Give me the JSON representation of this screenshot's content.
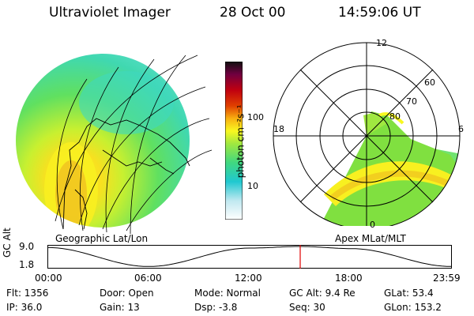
{
  "header": {
    "title": "Ultraviolet Imager",
    "date": "28 Oct 00",
    "time": "14:59:06 UT"
  },
  "left_panel": {
    "caption": "Geographic Lat/Lon"
  },
  "right_panel": {
    "caption": "Apex MLat/MLT",
    "mlt_labels": [
      "12",
      "18",
      "6",
      "0"
    ],
    "lat_labels": [
      "60",
      "70",
      "80"
    ]
  },
  "colorbar": {
    "unit_label": "photon cm⁻²s⁻¹",
    "tick_labels": [
      "100",
      "10"
    ],
    "colors": [
      "#ffffff",
      "#e8f0f8",
      "#c0e8f0",
      "#70d8e0",
      "#20c8d0",
      "#30d8a0",
      "#60e060",
      "#a0e840",
      "#d0f020",
      "#f8f820",
      "#f8d820",
      "#f8b010",
      "#f08000",
      "#e04000",
      "#d01010",
      "#b00020",
      "#900030",
      "#6a0040",
      "#3a0030",
      "#101010"
    ]
  },
  "altitude_plot": {
    "ylabel": "GC Alt",
    "yticks": [
      "9.0",
      "1.8"
    ],
    "xticks": [
      "00:00",
      "06:00",
      "12:00",
      "18:00",
      "23:59"
    ],
    "series_altitude_re": [
      [
        0,
        9.0
      ],
      [
        6,
        1.8
      ],
      [
        12,
        8.8
      ],
      [
        15,
        9.4
      ],
      [
        18,
        8.6
      ],
      [
        24,
        1.8
      ]
    ],
    "current_time_hr": 15.0,
    "current_marker_color": "#e00000"
  },
  "status": {
    "row1": {
      "flt": "Flt: 1356",
      "door": "Door: Open",
      "mode": "Mode: Normal",
      "gcalt": "GC Alt: 9.4 Re",
      "glat": "GLat:  53.4"
    },
    "row2": {
      "ip": "IP: 36.0",
      "gain": "Gain: 13",
      "dsp": "Dsp:   -3.8",
      "seq": "Seq: 30",
      "glon": "GLon: 153.2"
    }
  }
}
